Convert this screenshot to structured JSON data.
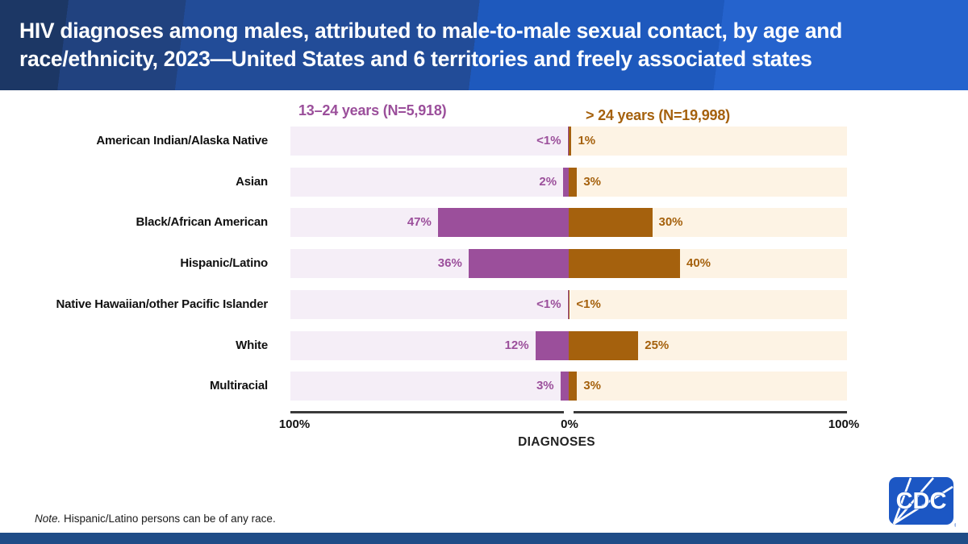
{
  "header": {
    "title_lines": [
      "HIV diagnoses among males, attributed to male-to-male sexual contact, by age and",
      "race/ethnicity, 2023—United States and 6 territories and freely associated states"
    ],
    "band_colors": [
      "#1c3765",
      "#21427f",
      "#224c98",
      "#1e59bd",
      "#2563cd"
    ]
  },
  "chart_data": {
    "type": "bar",
    "orientation": "diverging-horizontal",
    "xlabel": "DIAGNOSES",
    "axis_tick_labels": {
      "left": "100%",
      "center": "0%",
      "right": "100%"
    },
    "axis_range_percent": [
      0,
      100
    ],
    "grid": false,
    "categories": [
      "American Indian/Alaska Native",
      "Asian",
      "Black/African American",
      "Hispanic/Latino",
      "Native Hawaiian/other Pacific Islander",
      "White",
      "Multiracial"
    ],
    "series": [
      {
        "name": "13–24 years (N=5,918)",
        "side": "left",
        "color": "#9b4f9b",
        "track_color": "#f5eef7",
        "labels": [
          "<1%",
          "2%",
          "47%",
          "36%",
          "<1%",
          "12%",
          "3%"
        ],
        "values": [
          0.4,
          2,
          47,
          36,
          0.4,
          12,
          3
        ]
      },
      {
        "name": "> 24 years (N=19,998)",
        "side": "right",
        "color": "#a5610d",
        "track_color": "#fdf3e4",
        "labels": [
          "1%",
          "3%",
          "30%",
          "40%",
          "<1%",
          "25%",
          "3%"
        ],
        "values": [
          1,
          3,
          30,
          40,
          0.4,
          25,
          3
        ]
      }
    ]
  },
  "note": {
    "label": "Note.",
    "text": " Hispanic/Latino persons can be of any race."
  },
  "logo": {
    "text": "CDC",
    "color": "#1c57c4"
  },
  "footer": {
    "bar_color": "#1f4c87"
  }
}
